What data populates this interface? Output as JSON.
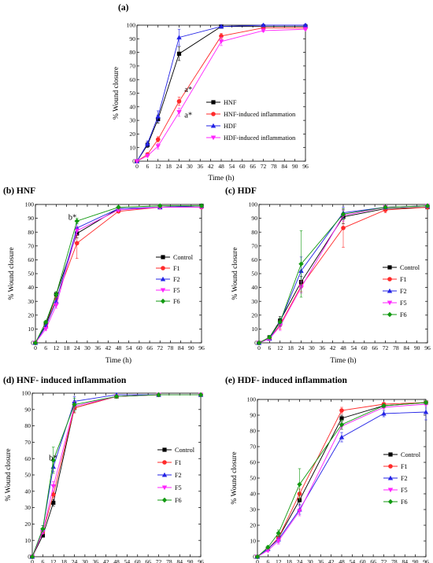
{
  "colors": {
    "black": "#000000",
    "red": "#ff2a2a",
    "blue": "#2323e6",
    "magenta": "#ff23ff",
    "green": "#119911"
  },
  "chart_data": [
    {
      "id": "a",
      "type": "line",
      "title": "(a)",
      "xlabel": "Time (h)",
      "ylabel": "% Wound closure",
      "xlim": [
        0,
        96
      ],
      "ylim": [
        0,
        100
      ],
      "xticks": [
        0,
        6,
        12,
        18,
        24,
        30,
        36,
        42,
        48,
        54,
        60,
        66,
        72,
        78,
        84,
        90,
        96
      ],
      "yticks": [
        0,
        10,
        20,
        30,
        40,
        50,
        60,
        70,
        80,
        90,
        100
      ],
      "x": [
        0,
        6,
        12,
        24,
        48,
        72,
        96
      ],
      "grid": false,
      "legend": "right",
      "series": [
        {
          "name": "HNF",
          "color": "black",
          "marker": "square",
          "values": [
            0,
            12,
            31,
            79,
            99,
            99,
            99
          ],
          "errors": [
            0,
            2,
            3,
            5,
            1,
            1,
            1
          ]
        },
        {
          "name": "HNF-induced inflammation",
          "color": "red",
          "marker": "circle",
          "values": [
            0,
            5,
            16,
            44,
            92,
            98,
            98
          ],
          "errors": [
            0,
            1,
            2,
            3,
            2,
            1,
            1
          ]
        },
        {
          "name": "HDF",
          "color": "blue",
          "marker": "triangle-up",
          "values": [
            0,
            13,
            33,
            91,
            99,
            100,
            100
          ],
          "errors": [
            0,
            2,
            4,
            6,
            1,
            1,
            1
          ]
        },
        {
          "name": "HDF-induced inflammation",
          "color": "magenta",
          "marker": "triangle-down",
          "values": [
            0,
            4,
            11,
            36,
            88,
            96,
            97
          ],
          "errors": [
            0,
            1,
            2,
            3,
            3,
            1,
            1
          ]
        }
      ],
      "annotations": [
        {
          "text": "a*",
          "x": 27,
          "y": 51
        },
        {
          "text": "a*",
          "x": 27,
          "y": 32
        }
      ]
    },
    {
      "id": "b",
      "type": "line",
      "title": "(b) HNF",
      "xlabel": "Time (h)",
      "ylabel": "% Wound closure",
      "xlim": [
        0,
        96
      ],
      "ylim": [
        0,
        100
      ],
      "xticks": [
        0,
        6,
        12,
        18,
        24,
        30,
        36,
        42,
        48,
        54,
        60,
        66,
        72,
        78,
        84,
        90,
        96
      ],
      "yticks": [
        0,
        10,
        20,
        30,
        40,
        50,
        60,
        70,
        80,
        90,
        100
      ],
      "x": [
        0,
        6,
        12,
        24,
        48,
        72,
        96
      ],
      "grid": false,
      "legend": "right",
      "series": [
        {
          "name": "Control",
          "color": "black",
          "marker": "square",
          "values": [
            0,
            13,
            35,
            79,
            97,
            98,
            99
          ],
          "errors": [
            0,
            1,
            2,
            3,
            1,
            1,
            1
          ]
        },
        {
          "name": "F1",
          "color": "red",
          "marker": "circle",
          "values": [
            0,
            12,
            32,
            72,
            95,
            98,
            98
          ],
          "errors": [
            0,
            1,
            2,
            11,
            1,
            1,
            1
          ]
        },
        {
          "name": "F2",
          "color": "blue",
          "marker": "triangle-up",
          "values": [
            0,
            12,
            30,
            83,
            97,
            98,
            99
          ],
          "errors": [
            0,
            1,
            2,
            3,
            1,
            1,
            1
          ]
        },
        {
          "name": "F5",
          "color": "magenta",
          "marker": "triangle-down",
          "values": [
            0,
            10,
            27,
            81,
            96,
            98,
            98
          ],
          "errors": [
            0,
            1,
            2,
            3,
            1,
            1,
            1
          ]
        },
        {
          "name": "F6",
          "color": "green",
          "marker": "diamond",
          "values": [
            0,
            15,
            35,
            88,
            98,
            99,
            99
          ],
          "errors": [
            0,
            1,
            2,
            2,
            1,
            1,
            1
          ]
        }
      ],
      "annotations": [
        {
          "text": "b*",
          "x": 19,
          "y": 89
        }
      ]
    },
    {
      "id": "c",
      "type": "line",
      "title": "(c) HDF",
      "xlabel": "Time (h)",
      "ylabel": "% Wound closure",
      "xlim": [
        0,
        96
      ],
      "ylim": [
        0,
        100
      ],
      "xticks": [
        0,
        6,
        12,
        18,
        24,
        30,
        36,
        42,
        48,
        54,
        60,
        66,
        72,
        78,
        84,
        90,
        96
      ],
      "yticks": [
        0,
        10,
        20,
        30,
        40,
        50,
        60,
        70,
        80,
        90,
        100
      ],
      "x": [
        0,
        6,
        12,
        24,
        48,
        72,
        96
      ],
      "grid": false,
      "legend": "right",
      "series": [
        {
          "name": "Control",
          "color": "black",
          "marker": "square",
          "values": [
            0,
            4,
            16,
            44,
            91,
            97,
            98
          ],
          "errors": [
            0,
            1,
            3,
            4,
            5,
            1,
            1
          ]
        },
        {
          "name": "F1",
          "color": "red",
          "marker": "circle",
          "values": [
            0,
            3,
            13,
            41,
            83,
            96,
            98
          ],
          "errors": [
            0,
            1,
            3,
            4,
            14,
            2,
            1
          ]
        },
        {
          "name": "F2",
          "color": "blue",
          "marker": "triangle-up",
          "values": [
            0,
            3,
            15,
            52,
            94,
            98,
            99
          ],
          "errors": [
            0,
            1,
            3,
            10,
            4,
            1,
            1
          ]
        },
        {
          "name": "F5",
          "color": "magenta",
          "marker": "triangle-down",
          "values": [
            0,
            3,
            12,
            40,
            92,
            98,
            99
          ],
          "errors": [
            0,
            1,
            3,
            4,
            4,
            1,
            1
          ]
        },
        {
          "name": "F6",
          "color": "green",
          "marker": "diamond",
          "values": [
            0,
            4,
            15,
            57,
            93,
            98,
            99
          ],
          "errors": [
            0,
            1,
            3,
            24,
            4,
            1,
            1
          ]
        }
      ],
      "annotations": []
    },
    {
      "id": "d",
      "type": "line",
      "title": "(d) HNF- induced inflammation",
      "xlabel": "Time (h)",
      "ylabel": "% Wound closure",
      "xlim": [
        0,
        96
      ],
      "ylim": [
        0,
        100
      ],
      "xticks": [
        0,
        6,
        12,
        18,
        24,
        30,
        36,
        42,
        48,
        54,
        60,
        66,
        72,
        78,
        84,
        90,
        96
      ],
      "yticks": [
        0,
        10,
        20,
        30,
        40,
        50,
        60,
        70,
        80,
        90,
        100
      ],
      "x": [
        0,
        6,
        12,
        24,
        48,
        72,
        96
      ],
      "grid": false,
      "legend": "right",
      "series": [
        {
          "name": "Control",
          "color": "black",
          "marker": "square",
          "values": [
            0,
            13,
            33,
            91,
            98,
            99,
            99
          ],
          "errors": [
            0,
            1,
            2,
            3,
            1,
            1,
            1
          ]
        },
        {
          "name": "F1",
          "color": "red",
          "marker": "circle",
          "values": [
            0,
            15,
            38,
            91,
            98,
            99,
            99
          ],
          "errors": [
            0,
            1,
            2,
            3,
            1,
            1,
            1
          ]
        },
        {
          "name": "F2",
          "color": "blue",
          "marker": "triangle-up",
          "values": [
            0,
            17,
            55,
            95,
            99,
            99,
            99
          ],
          "errors": [
            0,
            2,
            3,
            3,
            1,
            1,
            1
          ]
        },
        {
          "name": "F5",
          "color": "magenta",
          "marker": "triangle-down",
          "values": [
            0,
            15,
            43,
            92,
            98,
            99,
            99
          ],
          "errors": [
            0,
            1,
            3,
            3,
            1,
            1,
            1
          ]
        },
        {
          "name": "F6",
          "color": "green",
          "marker": "diamond",
          "values": [
            0,
            17,
            59,
            93,
            98,
            99,
            99
          ],
          "errors": [
            0,
            2,
            8,
            4,
            1,
            1,
            1
          ]
        }
      ],
      "annotations": [
        {
          "text": "b*",
          "x": 9.5,
          "y": 59
        }
      ]
    },
    {
      "id": "e",
      "type": "line",
      "title": "(e) HDF- induced inflammation",
      "xlabel": "Time (h)",
      "ylabel": "% Wound closure",
      "xlim": [
        0,
        96
      ],
      "ylim": [
        0,
        100
      ],
      "xticks": [
        0,
        6,
        12,
        18,
        24,
        30,
        36,
        42,
        48,
        54,
        60,
        66,
        72,
        78,
        84,
        90,
        96
      ],
      "yticks": [
        0,
        10,
        20,
        30,
        40,
        50,
        60,
        70,
        80,
        90,
        100
      ],
      "x": [
        0,
        6,
        12,
        24,
        48,
        72,
        96
      ],
      "grid": false,
      "legend": "right",
      "series": [
        {
          "name": "Control",
          "color": "black",
          "marker": "square",
          "values": [
            0,
            5,
            12,
            36,
            88,
            96,
            98
          ],
          "errors": [
            0,
            1,
            2,
            3,
            2,
            1,
            1
          ]
        },
        {
          "name": "F1",
          "color": "red",
          "marker": "circle",
          "values": [
            0,
            5,
            12,
            40,
            93,
            97,
            98
          ],
          "errors": [
            0,
            1,
            2,
            3,
            2,
            1,
            1
          ]
        },
        {
          "name": "F2",
          "color": "blue",
          "marker": "triangle-up",
          "values": [
            0,
            5,
            11,
            30,
            76,
            91,
            92
          ],
          "errors": [
            0,
            1,
            2,
            3,
            3,
            2,
            5
          ]
        },
        {
          "name": "F5",
          "color": "magenta",
          "marker": "triangle-down",
          "values": [
            0,
            4,
            10,
            29,
            83,
            95,
            97
          ],
          "errors": [
            0,
            1,
            2,
            3,
            2,
            1,
            1
          ]
        },
        {
          "name": "F6",
          "color": "green",
          "marker": "diamond",
          "values": [
            0,
            6,
            15,
            46,
            84,
            96,
            98
          ],
          "errors": [
            0,
            1,
            2,
            10,
            3,
            1,
            1
          ]
        }
      ],
      "annotations": []
    }
  ]
}
